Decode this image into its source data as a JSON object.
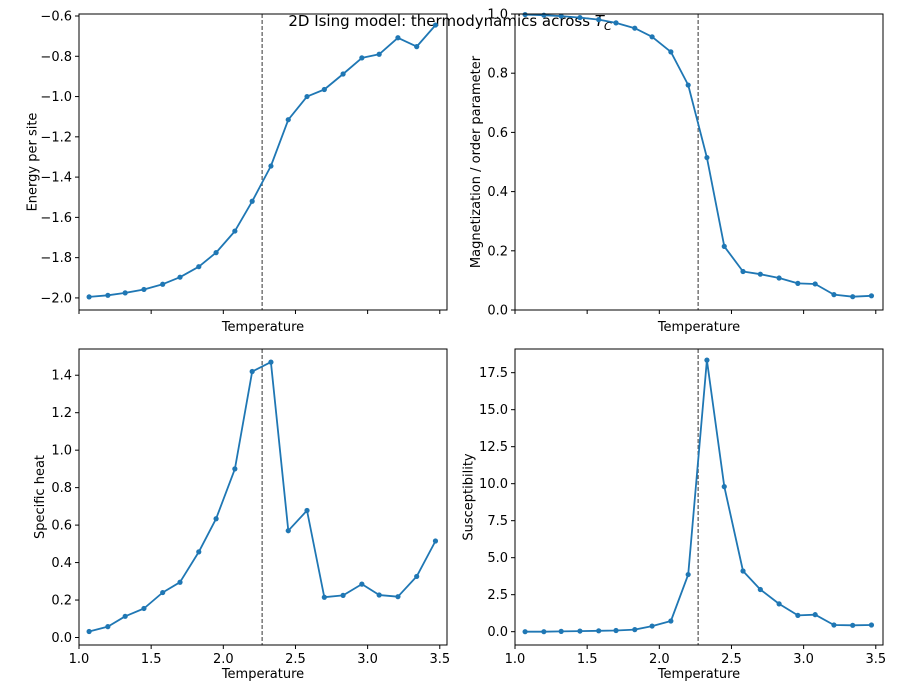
{
  "figure": {
    "title_main": "2D Ising model: thermodynamics across ",
    "title_sym": "T",
    "title_sub": "C"
  },
  "colors": {
    "line": "#1f77b4",
    "ref": "#555555",
    "axis": "#000000"
  },
  "chart_data": [
    {
      "type": "line",
      "xlabel": "Temperature",
      "ylabel": "Energy per site",
      "xlim": [
        1.0,
        3.55
      ],
      "ylim": [
        -2.06,
        -0.59
      ],
      "xticks": [
        1.0,
        1.5,
        2.0,
        2.5,
        3.0,
        3.5
      ],
      "show_xticklabels": false,
      "yticks": [
        -2.0,
        -1.8,
        -1.6,
        -1.4,
        -1.2,
        -1.0,
        -0.8,
        -0.6
      ],
      "yticklabels": [
        "−2.0",
        "−1.8",
        "−1.6",
        "−1.4",
        "−1.2",
        "−1.0",
        "−0.8",
        "−0.6"
      ],
      "vline": 2.269,
      "x": [
        1.07,
        1.2,
        1.32,
        1.45,
        1.58,
        1.7,
        1.83,
        1.95,
        2.08,
        2.2,
        2.33,
        2.45,
        2.58,
        2.7,
        2.83,
        2.96,
        3.08,
        3.21,
        3.34,
        3.47
      ],
      "y": [
        -1.995,
        -1.987,
        -1.975,
        -1.958,
        -1.932,
        -1.897,
        -1.845,
        -1.775,
        -1.668,
        -1.52,
        -1.345,
        -1.115,
        -1.0,
        -0.965,
        -0.888,
        -0.808,
        -0.79,
        -0.708,
        -0.752,
        -0.645
      ]
    },
    {
      "type": "line",
      "xlabel": "Temperature",
      "ylabel": "Magnetization / order parameter",
      "xlim": [
        1.0,
        3.55
      ],
      "ylim": [
        0.0,
        1.0
      ],
      "xticks": [
        1.0,
        1.5,
        2.0,
        2.5,
        3.0,
        3.5
      ],
      "show_xticklabels": false,
      "yticks": [
        0.0,
        0.2,
        0.4,
        0.6,
        0.8,
        1.0
      ],
      "yticklabels": [
        "0.0",
        "0.2",
        "0.4",
        "0.6",
        "0.8",
        "1.0"
      ],
      "vline": 2.269,
      "x": [
        1.07,
        1.2,
        1.32,
        1.45,
        1.58,
        1.7,
        1.83,
        1.95,
        2.08,
        2.2,
        2.33,
        2.45,
        2.58,
        2.7,
        2.83,
        2.96,
        3.08,
        3.21,
        3.34,
        3.47
      ],
      "y": [
        0.998,
        0.996,
        0.993,
        0.988,
        0.981,
        0.97,
        0.952,
        0.923,
        0.872,
        0.76,
        0.515,
        0.215,
        0.13,
        0.121,
        0.108,
        0.09,
        0.088,
        0.052,
        0.045,
        0.048
      ]
    },
    {
      "type": "line",
      "xlabel": "Temperature",
      "ylabel": "Specific heat",
      "xlim": [
        1.0,
        3.55
      ],
      "ylim": [
        -0.04,
        1.54
      ],
      "xticks": [
        1.0,
        1.5,
        2.0,
        2.5,
        3.0,
        3.5
      ],
      "xticklabels": [
        "1.0",
        "1.5",
        "2.0",
        "2.5",
        "3.0",
        "3.5"
      ],
      "show_xticklabels": true,
      "yticks": [
        0.0,
        0.2,
        0.4,
        0.6,
        0.8,
        1.0,
        1.2,
        1.4
      ],
      "yticklabels": [
        "0.0",
        "0.2",
        "0.4",
        "0.6",
        "0.8",
        "1.0",
        "1.2",
        "1.4"
      ],
      "vline": 2.269,
      "x": [
        1.07,
        1.2,
        1.32,
        1.45,
        1.58,
        1.7,
        1.83,
        1.95,
        2.08,
        2.2,
        2.33,
        2.45,
        2.58,
        2.7,
        2.83,
        2.96,
        3.08,
        3.21,
        3.34,
        3.47
      ],
      "y": [
        0.032,
        0.058,
        0.113,
        0.155,
        0.24,
        0.295,
        0.457,
        0.634,
        0.9,
        1.42,
        1.47,
        0.57,
        0.678,
        0.215,
        0.225,
        0.285,
        0.227,
        0.218,
        0.326,
        0.515
      ]
    },
    {
      "type": "line",
      "xlabel": "Temperature",
      "ylabel": "Susceptibility",
      "xlim": [
        1.0,
        3.55
      ],
      "ylim": [
        -0.9,
        19.1
      ],
      "xticks": [
        1.0,
        1.5,
        2.0,
        2.5,
        3.0,
        3.5
      ],
      "xticklabels": [
        "1.0",
        "1.5",
        "2.0",
        "2.5",
        "3.0",
        "3.5"
      ],
      "show_xticklabels": true,
      "yticks": [
        0.0,
        2.5,
        5.0,
        7.5,
        10.0,
        12.5,
        15.0,
        17.5
      ],
      "yticklabels": [
        "0.0",
        "2.5",
        "5.0",
        "7.5",
        "10.0",
        "12.5",
        "15.0",
        "17.5"
      ],
      "vline": 2.269,
      "x": [
        1.07,
        1.2,
        1.32,
        1.45,
        1.58,
        1.7,
        1.83,
        1.95,
        2.08,
        2.2,
        2.33,
        2.45,
        2.58,
        2.7,
        2.83,
        2.96,
        3.08,
        3.21,
        3.34,
        3.47
      ],
      "y": [
        0.0,
        0.0,
        0.02,
        0.04,
        0.06,
        0.08,
        0.14,
        0.38,
        0.72,
        3.86,
        18.35,
        9.8,
        4.1,
        2.85,
        1.88,
        1.1,
        1.15,
        0.45,
        0.43,
        0.45
      ]
    }
  ]
}
